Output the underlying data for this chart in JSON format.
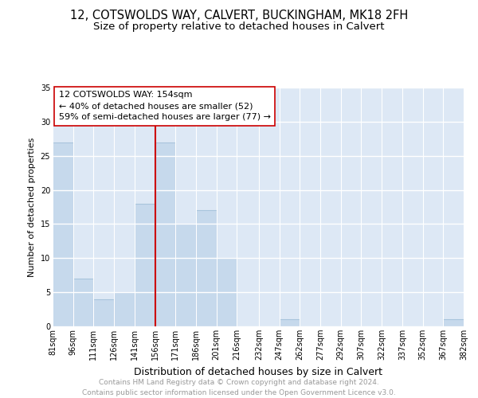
{
  "title": "12, COTSWOLDS WAY, CALVERT, BUCKINGHAM, MK18 2FH",
  "subtitle": "Size of property relative to detached houses in Calvert",
  "xlabel": "Distribution of detached houses by size in Calvert",
  "ylabel": "Number of detached properties",
  "bar_color": "#c6d9ec",
  "bar_edge_color": "#a8c4dc",
  "bg_color": "#dde8f5",
  "grid_color": "#ffffff",
  "ref_line_color": "#cc0000",
  "annotation_lines": [
    "12 COTSWOLDS WAY: 154sqm",
    "← 40% of detached houses are smaller (52)",
    "59% of semi-detached houses are larger (77) →"
  ],
  "bins": [
    81,
    96,
    111,
    126,
    141,
    156,
    171,
    186,
    201,
    216,
    232,
    247,
    262,
    277,
    292,
    307,
    322,
    337,
    352,
    367,
    382
  ],
  "counts": [
    27,
    7,
    4,
    5,
    18,
    27,
    15,
    17,
    10,
    0,
    0,
    1,
    0,
    0,
    0,
    0,
    0,
    0,
    0,
    1,
    0
  ],
  "tick_labels": [
    "81sqm",
    "96sqm",
    "111sqm",
    "126sqm",
    "141sqm",
    "156sqm",
    "171sqm",
    "186sqm",
    "201sqm",
    "216sqm",
    "232sqm",
    "247sqm",
    "262sqm",
    "277sqm",
    "292sqm",
    "307sqm",
    "322sqm",
    "337sqm",
    "352sqm",
    "367sqm",
    "382sqm"
  ],
  "ylim": [
    0,
    35
  ],
  "yticks": [
    0,
    5,
    10,
    15,
    20,
    25,
    30,
    35
  ],
  "footer": "Contains HM Land Registry data © Crown copyright and database right 2024.\nContains public sector information licensed under the Open Government Licence v3.0.",
  "footer_color": "#999999",
  "title_fontsize": 10.5,
  "subtitle_fontsize": 9.5,
  "xlabel_fontsize": 9,
  "ylabel_fontsize": 8,
  "tick_fontsize": 7,
  "annotation_fontsize": 8,
  "footer_fontsize": 6.5
}
